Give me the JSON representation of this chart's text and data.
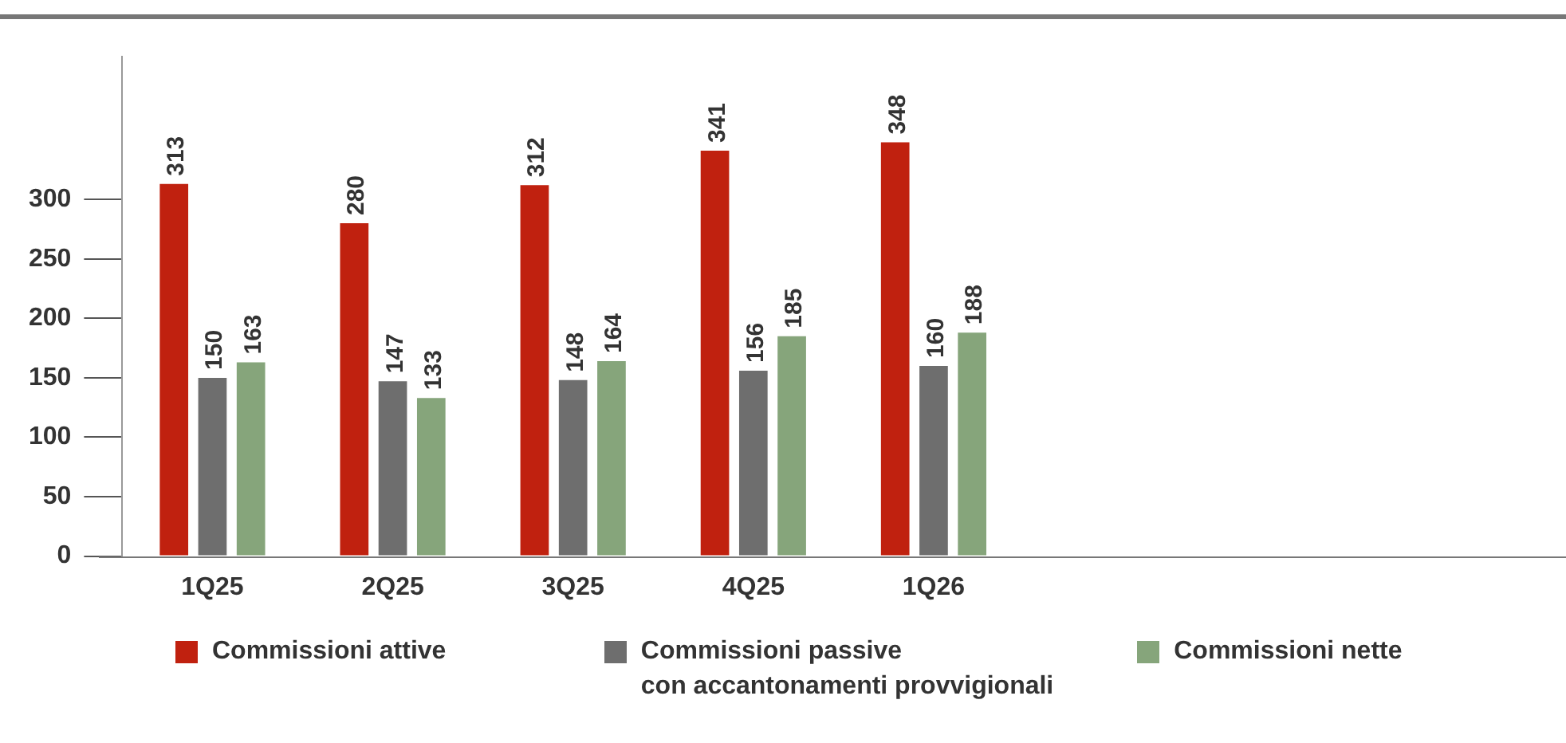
{
  "chart_data": {
    "type": "bar",
    "categories": [
      "1Q25",
      "2Q25",
      "3Q25",
      "4Q25",
      "1Q26"
    ],
    "series": [
      {
        "name": "Commissioni attive",
        "color": "#c0210f",
        "values": [
          313,
          280,
          312,
          341,
          348
        ]
      },
      {
        "name": "Commissioni passive\ncon accantonamenti provvigionali",
        "color": "#6e6e6e",
        "values": [
          150,
          147,
          148,
          156,
          160
        ]
      },
      {
        "name": "Commissioni nette",
        "color": "#86a57b",
        "values": [
          163,
          133,
          164,
          185,
          188
        ]
      }
    ],
    "ylim": [
      0,
      420
    ],
    "yticks": [
      0,
      50,
      100,
      150,
      200,
      250,
      300
    ],
    "grid": false,
    "legend": "bottom",
    "data_labels": true
  }
}
